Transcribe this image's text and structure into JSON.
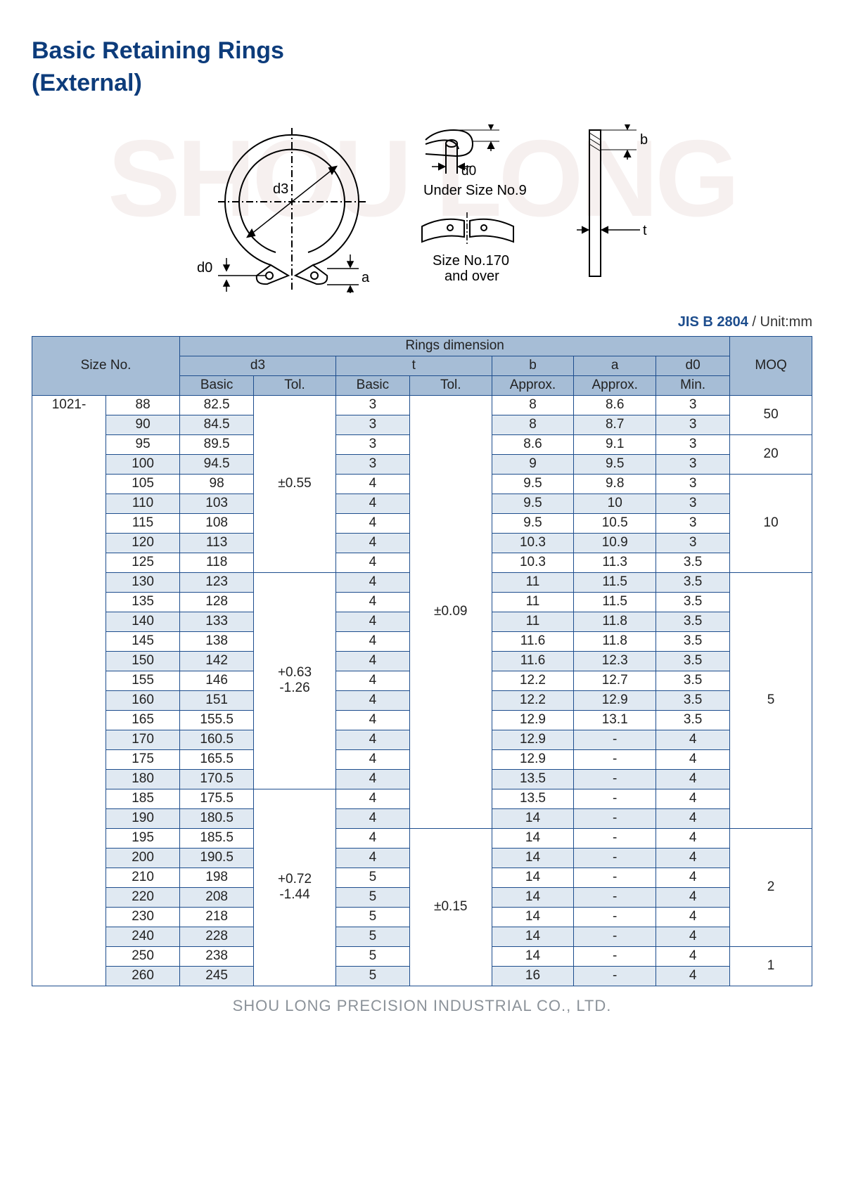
{
  "title": {
    "line1": "Basic Retaining Rings",
    "line2": "(External)"
  },
  "watermark": "SHOU LONG",
  "diagrams": {
    "main": {
      "d3_label": "d3",
      "d0_label": "d0",
      "a_label": "a"
    },
    "right_top": {
      "d0_label": "d0",
      "caption": "Under Size No.9"
    },
    "right_bottom": {
      "caption1": "Size No.170",
      "caption2": "and over"
    },
    "side": {
      "b_label": "b",
      "t_label": "t"
    }
  },
  "spec_label": "JIS B 2804",
  "unit_label": " / Unit:mm",
  "headers": {
    "size_no": "Size No.",
    "rings_dim": "Rings dimension",
    "d3": "d3",
    "t": "t",
    "b": "b",
    "a": "a",
    "d0": "d0",
    "moq": "MOQ",
    "basic": "Basic",
    "tol": "Tol.",
    "approx": "Approx.",
    "min": "Min."
  },
  "series": "1021-",
  "d3_tol_groups": [
    {
      "value": "±0.55",
      "span": 9
    },
    {
      "value": "+0.63\n-1.26",
      "span": 11
    },
    {
      "value": "+0.72\n-1.44",
      "span": 10
    }
  ],
  "t_tol_groups": [
    {
      "value": "±0.09",
      "span": 22
    },
    {
      "value": "±0.15",
      "span": 8
    }
  ],
  "moq_groups": [
    {
      "value": "50",
      "span": 2
    },
    {
      "value": "20",
      "span": 2
    },
    {
      "value": "10",
      "span": 5
    },
    {
      "value": "5",
      "span": 13
    },
    {
      "value": "2",
      "span": 6
    },
    {
      "value": "1",
      "span": 2
    }
  ],
  "rows": [
    {
      "size": "88",
      "d3": "82.5",
      "t": "3",
      "b": "8",
      "a": "8.6",
      "d0": "3"
    },
    {
      "size": "90",
      "d3": "84.5",
      "t": "3",
      "b": "8",
      "a": "8.7",
      "d0": "3"
    },
    {
      "size": "95",
      "d3": "89.5",
      "t": "3",
      "b": "8.6",
      "a": "9.1",
      "d0": "3"
    },
    {
      "size": "100",
      "d3": "94.5",
      "t": "3",
      "b": "9",
      "a": "9.5",
      "d0": "3"
    },
    {
      "size": "105",
      "d3": "98",
      "t": "4",
      "b": "9.5",
      "a": "9.8",
      "d0": "3"
    },
    {
      "size": "110",
      "d3": "103",
      "t": "4",
      "b": "9.5",
      "a": "10",
      "d0": "3"
    },
    {
      "size": "115",
      "d3": "108",
      "t": "4",
      "b": "9.5",
      "a": "10.5",
      "d0": "3"
    },
    {
      "size": "120",
      "d3": "113",
      "t": "4",
      "b": "10.3",
      "a": "10.9",
      "d0": "3"
    },
    {
      "size": "125",
      "d3": "118",
      "t": "4",
      "b": "10.3",
      "a": "11.3",
      "d0": "3.5"
    },
    {
      "size": "130",
      "d3": "123",
      "t": "4",
      "b": "11",
      "a": "11.5",
      "d0": "3.5"
    },
    {
      "size": "135",
      "d3": "128",
      "t": "4",
      "b": "11",
      "a": "11.5",
      "d0": "3.5"
    },
    {
      "size": "140",
      "d3": "133",
      "t": "4",
      "b": "11",
      "a": "11.8",
      "d0": "3.5"
    },
    {
      "size": "145",
      "d3": "138",
      "t": "4",
      "b": "11.6",
      "a": "11.8",
      "d0": "3.5"
    },
    {
      "size": "150",
      "d3": "142",
      "t": "4",
      "b": "11.6",
      "a": "12.3",
      "d0": "3.5"
    },
    {
      "size": "155",
      "d3": "146",
      "t": "4",
      "b": "12.2",
      "a": "12.7",
      "d0": "3.5"
    },
    {
      "size": "160",
      "d3": "151",
      "t": "4",
      "b": "12.2",
      "a": "12.9",
      "d0": "3.5"
    },
    {
      "size": "165",
      "d3": "155.5",
      "t": "4",
      "b": "12.9",
      "a": "13.1",
      "d0": "3.5"
    },
    {
      "size": "170",
      "d3": "160.5",
      "t": "4",
      "b": "12.9",
      "a": "-",
      "d0": "4"
    },
    {
      "size": "175",
      "d3": "165.5",
      "t": "4",
      "b": "12.9",
      "a": "-",
      "d0": "4"
    },
    {
      "size": "180",
      "d3": "170.5",
      "t": "4",
      "b": "13.5",
      "a": "-",
      "d0": "4"
    },
    {
      "size": "185",
      "d3": "175.5",
      "t": "4",
      "b": "13.5",
      "a": "-",
      "d0": "4"
    },
    {
      "size": "190",
      "d3": "180.5",
      "t": "4",
      "b": "14",
      "a": "-",
      "d0": "4"
    },
    {
      "size": "195",
      "d3": "185.5",
      "t": "4",
      "b": "14",
      "a": "-",
      "d0": "4"
    },
    {
      "size": "200",
      "d3": "190.5",
      "t": "4",
      "b": "14",
      "a": "-",
      "d0": "4"
    },
    {
      "size": "210",
      "d3": "198",
      "t": "5",
      "b": "14",
      "a": "-",
      "d0": "4"
    },
    {
      "size": "220",
      "d3": "208",
      "t": "5",
      "b": "14",
      "a": "-",
      "d0": "4"
    },
    {
      "size": "230",
      "d3": "218",
      "t": "5",
      "b": "14",
      "a": "-",
      "d0": "4"
    },
    {
      "size": "240",
      "d3": "228",
      "t": "5",
      "b": "14",
      "a": "-",
      "d0": "4"
    },
    {
      "size": "250",
      "d3": "238",
      "t": "5",
      "b": "14",
      "a": "-",
      "d0": "4"
    },
    {
      "size": "260",
      "d3": "245",
      "t": "5",
      "b": "16",
      "a": "-",
      "d0": "4"
    }
  ],
  "styling": {
    "title_color": "#0d3c7b",
    "border_color": "#1d4d8d",
    "header_bg": "#a6bdd6",
    "alt_row_bg": "#e0e9f2",
    "watermark_color": "#f6f0ef",
    "footer_color": "#8b9299",
    "diagram_stroke": "#000000"
  },
  "footer": "SHOU LONG PRECISION INDUSTRIAL CO., LTD."
}
